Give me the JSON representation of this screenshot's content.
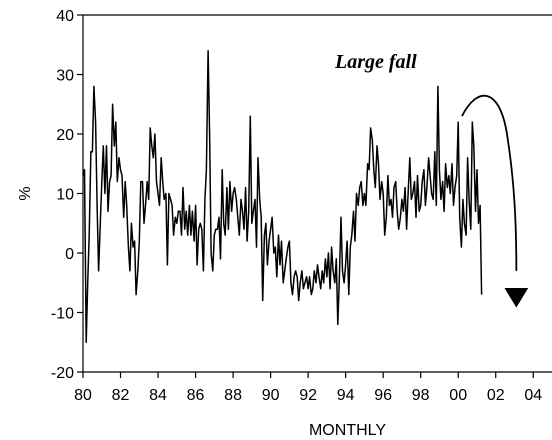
{
  "chart_data": {
    "type": "line",
    "title": "",
    "xlabel": "MONTHLY",
    "ylabel": "%",
    "xlim": [
      1980,
      2005
    ],
    "ylim": [
      -20,
      40
    ],
    "x_ticks": [
      80,
      82,
      84,
      86,
      88,
      90,
      92,
      94,
      96,
      98,
      0,
      2,
      4
    ],
    "x_tick_labels": [
      "80",
      "82",
      "84",
      "86",
      "88",
      "90",
      "92",
      "94",
      "96",
      "98",
      "00",
      "02",
      "04"
    ],
    "y_ticks": [
      -20,
      -10,
      0,
      10,
      20,
      30,
      40
    ],
    "y_tick_labels": [
      "-20",
      "-10",
      "0",
      "10",
      "20",
      "30",
      "40"
    ],
    "grid": false,
    "legend": "none",
    "annotation": {
      "text": "Large fall",
      "arrow": "curved, pointing down toward 2003"
    },
    "series": [
      {
        "x": [
          1980.0,
          1980.08,
          1980.17,
          1980.25,
          1980.33,
          1980.42,
          1980.5,
          1980.58,
          1980.67,
          1980.75,
          1980.83,
          1980.92,
          1981.0,
          1981.08,
          1981.17,
          1981.25,
          1981.33,
          1981.42,
          1981.5,
          1981.58,
          1981.67,
          1981.75,
          1981.83,
          1981.92,
          1982.0,
          1982.08,
          1982.17,
          1982.25,
          1982.33,
          1982.42,
          1982.5,
          1982.58,
          1982.67,
          1982.75,
          1982.83,
          1982.92,
          1983.0,
          1983.08,
          1983.17,
          1983.25,
          1983.33,
          1983.42,
          1983.5,
          1983.58,
          1983.67,
          1983.75,
          1983.83,
          1983.92,
          1984.0,
          1984.08,
          1984.17,
          1984.25,
          1984.33,
          1984.42,
          1984.5,
          1984.58,
          1984.67,
          1984.75,
          1984.83,
          1984.92,
          1985.0,
          1985.08,
          1985.17,
          1985.25,
          1985.33,
          1985.42,
          1985.5,
          1985.58,
          1985.67,
          1985.75,
          1985.83,
          1985.92,
          1986.0,
          1986.08,
          1986.17,
          1986.25,
          1986.33,
          1986.42,
          1986.5,
          1986.58,
          1986.67,
          1986.75,
          1986.83,
          1986.92,
          1987.0,
          1987.08,
          1987.17,
          1987.25,
          1987.33,
          1987.42,
          1987.5,
          1987.58,
          1987.67,
          1987.75,
          1987.83,
          1987.92,
          1988.0,
          1988.08,
          1988.17,
          1988.25,
          1988.33,
          1988.42,
          1988.5,
          1988.58,
          1988.67,
          1988.75,
          1988.83,
          1988.92,
          1989.0,
          1989.08,
          1989.17,
          1989.25,
          1989.33,
          1989.42,
          1989.5,
          1989.58,
          1989.67,
          1989.75,
          1989.83,
          1989.92,
          1990.0,
          1990.08,
          1990.17,
          1990.25,
          1990.33,
          1990.42,
          1990.5,
          1990.58,
          1990.67,
          1990.75,
          1990.83,
          1990.92,
          1991.0,
          1991.08,
          1991.17,
          1991.25,
          1991.33,
          1991.42,
          1991.5,
          1991.58,
          1991.67,
          1991.75,
          1991.83,
          1991.92,
          1992.0,
          1992.08,
          1992.17,
          1992.25,
          1992.33,
          1992.42,
          1992.5,
          1992.58,
          1992.67,
          1992.75,
          1992.83,
          1992.92,
          1993.0,
          1993.08,
          1993.17,
          1993.25,
          1993.33,
          1993.42,
          1993.5,
          1993.58,
          1993.67,
          1993.75,
          1993.83,
          1993.92,
          1994.0,
          1994.08,
          1994.17,
          1994.25,
          1994.33,
          1994.42,
          1994.5,
          1994.58,
          1994.67,
          1994.75,
          1994.83,
          1994.92,
          1995.0,
          1995.08,
          1995.17,
          1995.25,
          1995.33,
          1995.42,
          1995.5,
          1995.58,
          1995.67,
          1995.75,
          1995.83,
          1995.92,
          1996.0,
          1996.08,
          1996.17,
          1996.25,
          1996.33,
          1996.42,
          1996.5,
          1996.58,
          1996.67,
          1996.75,
          1996.83,
          1996.92,
          1997.0,
          1997.08,
          1997.17,
          1997.25,
          1997.33,
          1997.42,
          1997.5,
          1997.58,
          1997.67,
          1997.75,
          1997.83,
          1997.92,
          1998.0,
          1998.08,
          1998.17,
          1998.25,
          1998.33,
          1998.42,
          1998.5,
          1998.58,
          1998.67,
          1998.75,
          1998.83,
          1998.92,
          1999.0,
          1999.08,
          1999.17,
          1999.25,
          1999.33,
          1999.42,
          1999.5,
          1999.58,
          1999.67,
          1999.75,
          1999.83,
          1999.92,
          2000.0,
          2000.08,
          2000.17,
          2000.25,
          2000.33,
          2000.42,
          2000.5,
          2000.58,
          2000.67,
          2000.75,
          2000.83,
          2000.92,
          2001.0,
          2001.08,
          2001.17,
          2001.25
        ],
        "y": [
          13,
          14,
          -15,
          -5,
          3,
          17,
          17,
          28,
          22,
          8,
          -3,
          5,
          12,
          18,
          10,
          18,
          7,
          12,
          13,
          25,
          18,
          22,
          12,
          16,
          14,
          13,
          6,
          12,
          8,
          1,
          -3,
          5,
          1,
          2,
          -7,
          -3,
          2,
          12,
          12,
          5,
          8,
          12,
          9,
          21,
          18,
          16,
          20,
          12,
          10,
          8,
          16,
          12,
          9,
          10,
          -2,
          10,
          9,
          8,
          3,
          6,
          5,
          7,
          7,
          3,
          11,
          4,
          7,
          3,
          8,
          3,
          7,
          2,
          8,
          -2,
          4,
          5,
          4,
          -3,
          9,
          14,
          34,
          20,
          0,
          -3,
          3,
          4,
          4,
          6,
          -1,
          14,
          5,
          3,
          11,
          4,
          12,
          7,
          10,
          11,
          9,
          6,
          3,
          9,
          7,
          4,
          11,
          2,
          7,
          23,
          5,
          7,
          9,
          1,
          16,
          9,
          6,
          -8,
          3,
          5,
          -2,
          2,
          4,
          6,
          0,
          1,
          -4,
          3,
          -2,
          2,
          -5,
          -3,
          -1,
          1,
          2,
          -5,
          -7,
          -4,
          -3,
          -4,
          -8,
          -5,
          -3,
          -6,
          -5,
          -4,
          -6,
          -4,
          -7,
          -6,
          -3,
          -5,
          -2,
          -4,
          -6,
          -3,
          -5,
          -1,
          -4,
          0,
          -6,
          1,
          -3,
          -5,
          -1,
          -12,
          -4,
          6,
          -3,
          -5,
          -2,
          2,
          -7,
          1,
          3,
          7,
          2,
          10,
          8,
          11,
          12,
          8,
          10,
          8,
          15,
          14,
          21,
          19,
          14,
          11,
          18,
          15,
          9,
          12,
          10,
          3,
          6,
          13,
          8,
          9,
          6,
          11,
          12,
          7,
          4,
          6,
          9,
          7,
          11,
          4,
          10,
          16,
          9,
          10,
          12,
          6,
          13,
          7,
          8,
          12,
          14,
          8,
          11,
          16,
          13,
          10,
          9,
          17,
          8,
          28,
          14,
          9,
          12,
          7,
          15,
          11,
          13,
          10,
          15,
          8,
          11,
          13,
          22,
          6,
          1,
          9,
          5,
          3,
          16,
          9,
          4,
          22,
          18,
          7,
          14,
          5,
          8,
          -7
        ]
      }
    ]
  }
}
